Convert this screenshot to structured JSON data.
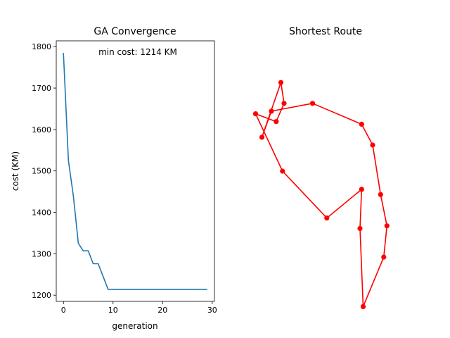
{
  "chart_data": [
    {
      "type": "line",
      "title": "GA Convergence",
      "xlabel": "generation",
      "ylabel": "cost (KM)",
      "annotation": "min cost: 1214 KM",
      "xlim": [
        -1.45,
        30.45
      ],
      "ylim": [
        1185,
        1814
      ],
      "xticks": [
        0,
        10,
        20,
        30
      ],
      "yticks": [
        1200,
        1300,
        1400,
        1500,
        1600,
        1700,
        1800
      ],
      "grid": false,
      "color": "#1f77b4",
      "series": [
        {
          "x": [
            0,
            1,
            2,
            3,
            4,
            5,
            6,
            7,
            8,
            9,
            10,
            11,
            12,
            13,
            14,
            15,
            16,
            17,
            18,
            19,
            20,
            21,
            22,
            23,
            24,
            25,
            26,
            27,
            28,
            29
          ],
          "y": [
            1785,
            1525,
            1440,
            1325,
            1307,
            1307,
            1276,
            1276,
            1245,
            1214,
            1214,
            1214,
            1214,
            1214,
            1214,
            1214,
            1214,
            1214,
            1214,
            1214,
            1214,
            1214,
            1214,
            1214,
            1214,
            1214,
            1214,
            1214,
            1214,
            1214
          ]
        }
      ]
    },
    {
      "type": "line",
      "title": "Shortest Route",
      "axes_visible": false,
      "closed": true,
      "markers": true,
      "color": "#ff0000",
      "xlim": [
        0,
        10
      ],
      "ylim": [
        0,
        10
      ],
      "series": [
        {
          "x": [
            2.2,
            1.0,
            1.6,
            4.2,
            7.3,
            8.0,
            8.5,
            8.9,
            8.7,
            7.4,
            7.2,
            7.3,
            5.1,
            2.3,
            0.6,
            1.9,
            2.4
          ],
          "y": [
            8.4,
            6.3,
            7.3,
            7.6,
            6.8,
            6.0,
            4.1,
            2.9,
            1.7,
            -0.2,
            2.8,
            4.3,
            3.2,
            5.0,
            7.2,
            6.9,
            7.6
          ]
        }
      ]
    }
  ]
}
